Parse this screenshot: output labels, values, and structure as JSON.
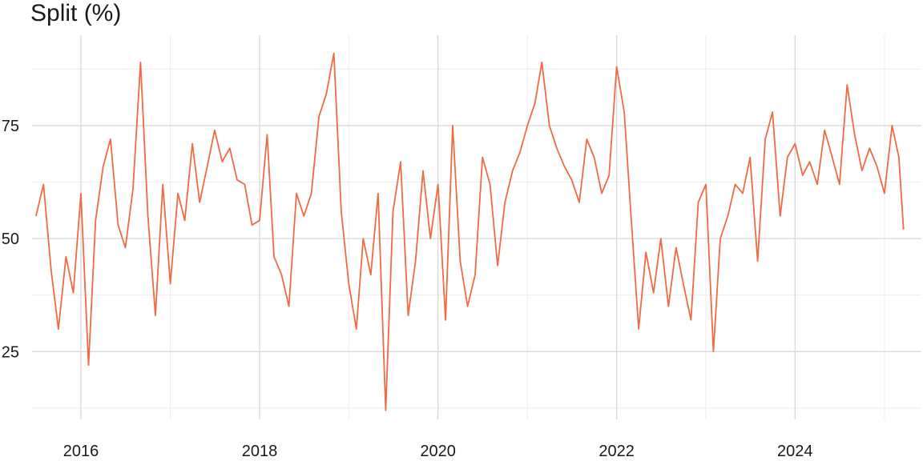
{
  "chart_data": {
    "type": "line",
    "title": "Split (%)",
    "xlabel": "",
    "ylabel": "",
    "xlim": [
      "2015-06-15",
      "2025-06-01"
    ],
    "ylim": [
      10,
      95
    ],
    "x_ticks": [
      "2016",
      "2018",
      "2020",
      "2022",
      "2024"
    ],
    "y_ticks": [
      25,
      50,
      75
    ],
    "grid": true,
    "legend": "none",
    "series": [
      {
        "color": "#f06a45",
        "x": [
          "2015-07-01",
          "2015-08-01",
          "2015-09-01",
          "2015-10-01",
          "2015-11-01",
          "2015-12-01",
          "2016-01-01",
          "2016-02-01",
          "2016-03-01",
          "2016-04-01",
          "2016-05-01",
          "2016-06-01",
          "2016-07-01",
          "2016-08-01",
          "2016-09-01",
          "2016-10-01",
          "2016-11-01",
          "2016-12-01",
          "2017-01-01",
          "2017-02-01",
          "2017-03-01",
          "2017-04-01",
          "2017-05-01",
          "2017-06-01",
          "2017-07-01",
          "2017-08-01",
          "2017-09-01",
          "2017-10-01",
          "2017-11-01",
          "2017-12-01",
          "2018-01-01",
          "2018-02-01",
          "2018-03-01",
          "2018-04-01",
          "2018-05-01",
          "2018-06-01",
          "2018-07-01",
          "2018-08-01",
          "2018-09-01",
          "2018-10-01",
          "2018-11-01",
          "2018-12-01",
          "2019-01-01",
          "2019-02-01",
          "2019-03-01",
          "2019-04-01",
          "2019-05-01",
          "2019-06-01",
          "2019-07-01",
          "2019-08-01",
          "2019-09-01",
          "2019-10-01",
          "2019-11-01",
          "2019-12-01",
          "2020-01-01",
          "2020-02-01",
          "2020-03-01",
          "2020-04-01",
          "2020-05-01",
          "2020-06-01",
          "2020-07-01",
          "2020-08-01",
          "2020-09-01",
          "2020-10-01",
          "2020-11-01",
          "2020-12-01",
          "2021-01-01",
          "2021-02-01",
          "2021-03-01",
          "2021-04-01",
          "2021-05-01",
          "2021-06-01",
          "2021-07-01",
          "2021-08-01",
          "2021-09-01",
          "2021-10-01",
          "2021-11-01",
          "2021-12-01",
          "2022-01-01",
          "2022-02-01",
          "2022-03-01",
          "2022-04-01",
          "2022-05-01",
          "2022-06-01",
          "2022-07-01",
          "2022-08-01",
          "2022-09-01",
          "2022-10-01",
          "2022-11-01",
          "2022-12-01",
          "2023-01-01",
          "2023-02-01",
          "2023-03-01",
          "2023-04-01",
          "2023-05-01",
          "2023-06-01",
          "2023-07-01",
          "2023-08-01",
          "2023-09-01",
          "2023-10-01",
          "2023-11-01",
          "2023-12-01",
          "2024-01-01",
          "2024-02-01",
          "2024-03-01",
          "2024-04-01",
          "2024-05-01",
          "2024-06-01",
          "2024-07-01",
          "2024-08-01",
          "2024-09-01",
          "2024-10-01",
          "2024-11-01",
          "2024-12-01",
          "2025-01-01",
          "2025-02-01",
          "2025-03-01",
          "2025-03-20"
        ],
        "y": [
          55,
          62,
          43,
          30,
          46,
          38,
          60,
          22,
          54,
          66,
          72,
          53,
          48,
          61,
          89,
          55,
          33,
          62,
          40,
          60,
          54,
          71,
          58,
          66,
          74,
          67,
          70,
          63,
          62,
          53,
          54,
          73,
          46,
          42,
          35,
          60,
          55,
          60,
          77,
          82,
          91,
          56,
          40,
          30,
          50,
          42,
          60,
          12,
          56,
          67,
          33,
          45,
          65,
          50,
          62,
          32,
          75,
          45,
          35,
          42,
          68,
          62,
          44,
          58,
          65,
          69,
          75,
          80,
          89,
          75,
          70,
          66,
          63,
          58,
          72,
          68,
          60,
          64,
          88,
          78,
          55,
          30,
          47,
          38,
          50,
          35,
          48,
          40,
          32,
          58,
          62,
          25,
          50,
          55,
          62,
          60,
          68,
          45,
          72,
          78,
          55,
          68,
          71,
          64,
          67,
          62,
          74,
          68,
          62,
          84,
          73,
          65,
          70,
          66,
          60,
          75,
          68,
          52
        ]
      }
    ]
  }
}
